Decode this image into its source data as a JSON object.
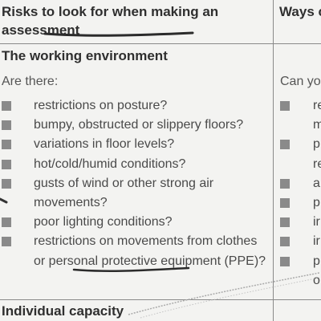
{
  "header": {
    "left": "Risks to look for when making an assessment",
    "right": "Ways c"
  },
  "section": {
    "title": "The working environment",
    "intro_left": "Are there:",
    "intro_right": "Can yo"
  },
  "risks": [
    "restrictions on posture?",
    "bumpy, obstructed or slippery floors?",
    "variations in floor levels?",
    "hot/cold/humid conditions?",
    "gusts of wind or other strong air movements?",
    "poor lighting conditions?",
    "restrictions on movements from clothes or personal protective equipment (PPE)?"
  ],
  "ways": [
    {
      "l1": "re",
      "l2": "m"
    },
    {
      "l1": "p",
      "l2": "re"
    },
    {
      "l1": "a",
      "l2": ""
    },
    {
      "l1": "p",
      "l2": ""
    },
    {
      "l1": "ir",
      "l2": ""
    },
    {
      "l1": "ir",
      "l2": ""
    },
    {
      "l1": "p",
      "l2": "o"
    }
  ],
  "footer": {
    "title": "Individual capacity"
  }
}
